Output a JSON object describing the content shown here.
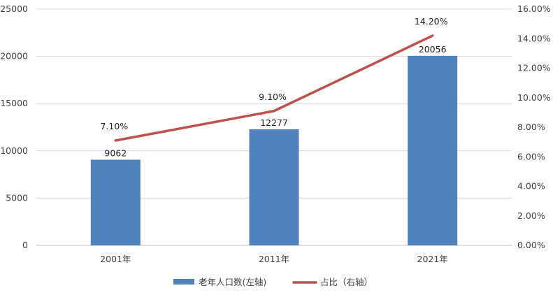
{
  "chart_data": {
    "type": "bar",
    "categories": [
      "2001年",
      "2011年",
      "2021年"
    ],
    "series": [
      {
        "name": "老年人口数(左轴)",
        "type": "bar",
        "axis": "left",
        "values": [
          9062,
          12277,
          20056
        ],
        "value_labels": [
          "9062",
          "12277",
          "20056"
        ],
        "color": "#4f81bd"
      },
      {
        "name": "占比（右轴）",
        "type": "line",
        "axis": "right",
        "values": [
          7.1,
          9.1,
          14.2
        ],
        "value_labels": [
          "7.10%",
          "9.10%",
          "14.20%"
        ],
        "color": "#c0504d"
      }
    ],
    "y_left": {
      "min": 0,
      "max": 25000,
      "ticks": [
        0,
        5000,
        10000,
        15000,
        20000,
        25000
      ],
      "tick_labels": [
        "0",
        "5000",
        "10000",
        "15000",
        "20000",
        "25000"
      ]
    },
    "y_right": {
      "min": 0,
      "max": 16,
      "ticks": [
        0,
        2,
        4,
        6,
        8,
        10,
        12,
        14,
        16
      ],
      "tick_labels": [
        "0.00%",
        "2.00%",
        "4.00%",
        "6.00%",
        "8.00%",
        "10.00%",
        "12.00%",
        "14.00%",
        "16.00%"
      ]
    },
    "grid": true,
    "legend": "bottom-center"
  }
}
